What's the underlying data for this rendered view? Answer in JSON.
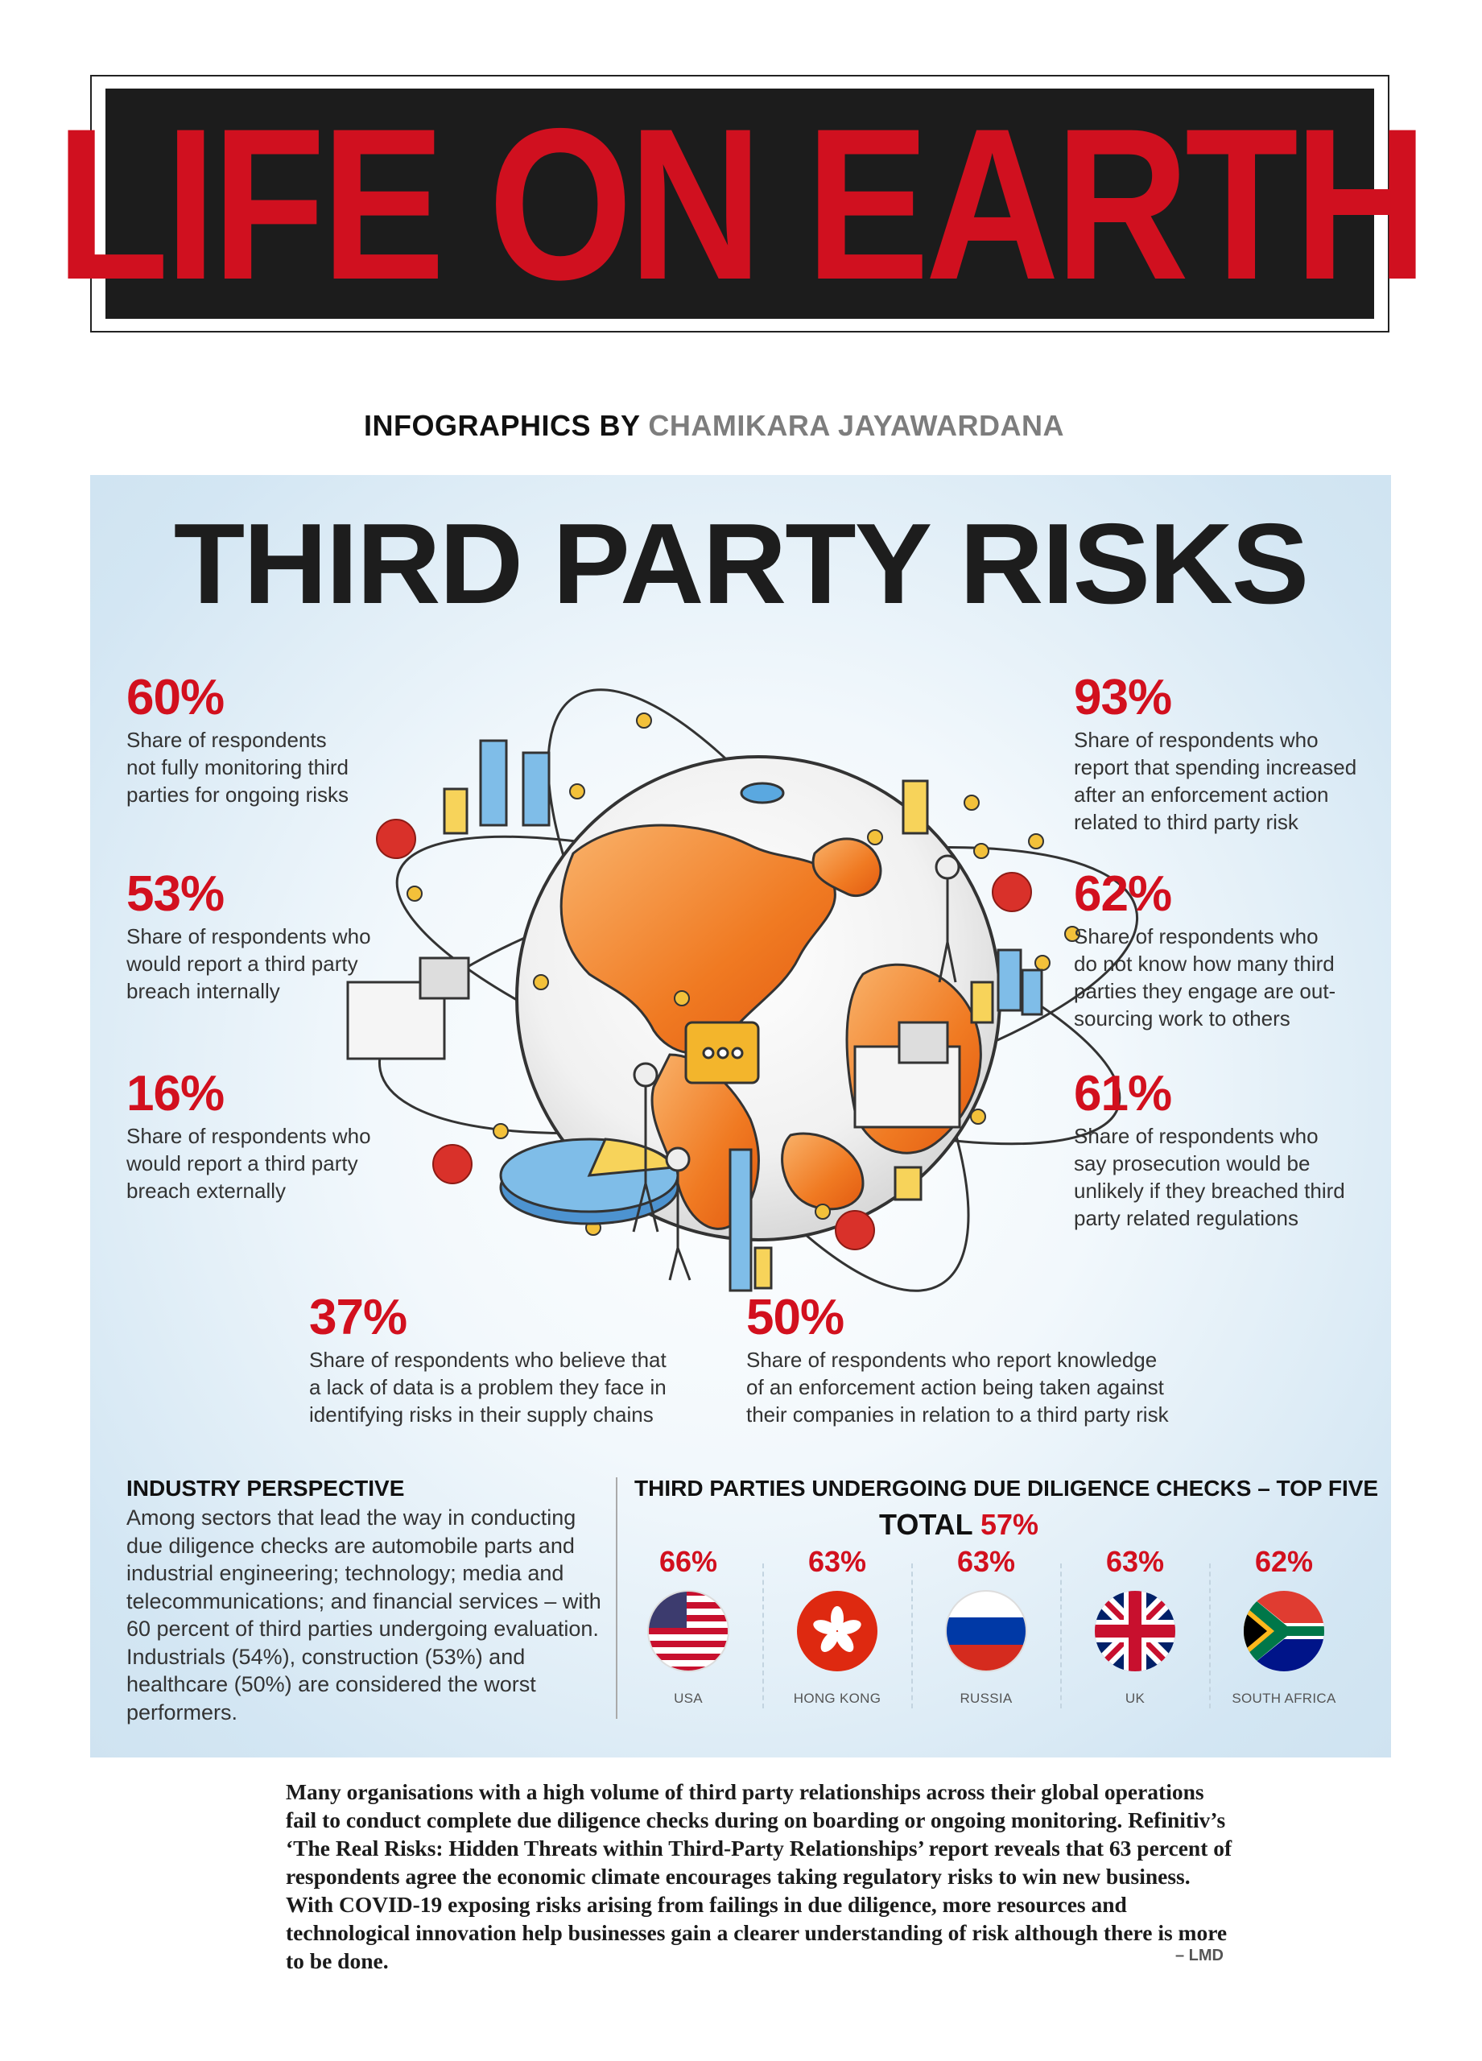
{
  "masthead": {
    "title": "LIFE ON EARTH"
  },
  "byline": {
    "prefix": "INFOGRAPHICS BY",
    "author": "CHAMIKARA JAYAWARDANA"
  },
  "main_title": "THIRD PARTY RISKS",
  "stats": [
    {
      "value": "60%",
      "text": [
        "Share of respondents",
        "not fully monitoring third",
        "parties for ongoing risks"
      ]
    },
    {
      "value": "53%",
      "text": [
        "Share of respondents who",
        "would report a third party",
        "breach internally"
      ]
    },
    {
      "value": "16%",
      "text": [
        "Share of respondents who",
        "would report a third party",
        "breach externally"
      ]
    },
    {
      "value": "93%",
      "text": [
        "Share of respondents who",
        "report that spending increased",
        "after an enforcement action",
        "related to third party risk"
      ]
    },
    {
      "value": "62%",
      "text": [
        "Share of respondents who",
        "do not know how many third",
        "parties they engage are out-",
        "sourcing work to others"
      ]
    },
    {
      "value": "61%",
      "text": [
        "Share of respondents who",
        "say prosecution would be",
        "unlikely if they breached third",
        "party related regulations"
      ]
    },
    {
      "value": "37%",
      "text": [
        "Share of respondents who believe that",
        "a lack of data is a problem they face in",
        "identifying risks in their supply chains"
      ]
    },
    {
      "value": "50%",
      "text": [
        "Share of respondents who report knowledge",
        "of an enforcement action being taken against",
        "their companies in relation to a third party risk"
      ]
    }
  ],
  "industry": {
    "title": "INDUSTRY PERSPECTIVE",
    "body": "Among sectors that lead the way in conducting due diligence checks are automobile parts and industrial engineering; technology; media and telecommunications; and financial services – with 60 percent of third parties undergoing evaluation. Industrials (54%), construction (53%) and healthcare (50%) are considered the worst performers."
  },
  "due_diligence": {
    "title": "THIRD PARTIES UNDERGOING DUE DILIGENCE CHECKS – TOP FIVE",
    "total_label": "TOTAL",
    "total_value": "57%",
    "countries": [
      {
        "pct": "66%",
        "name": "USA",
        "flag": "usa-flag-icon"
      },
      {
        "pct": "63%",
        "name": "HONG KONG",
        "flag": "hong-kong-flag-icon"
      },
      {
        "pct": "63%",
        "name": "RUSSIA",
        "flag": "russia-flag-icon"
      },
      {
        "pct": "63%",
        "name": "UK",
        "flag": "uk-flag-icon"
      },
      {
        "pct": "62%",
        "name": "SOUTH AFRICA",
        "flag": "south-africa-flag-icon"
      }
    ]
  },
  "footer": {
    "paragraph": "Many organisations with a high volume of third party relationships across their global operations fail to conduct complete due diligence checks during on boarding or ongoing monitoring. Refinitiv’s ‘The Real Risks: Hidden Threats within Third-Party Relationships’ report reveals that 63 percent of respondents agree the economic climate encourages taking regulatory risks to win new business. With COVID-19 exposing risks arising from failings in due diligence, more resources and technological innovation help businesses gain a clearer understanding of risk although there is more to be done.",
    "source": "– LMD"
  },
  "colors": {
    "accent_red": "#d2101e",
    "masthead_bg": "#1c1c1c",
    "globe_orange": "#f07a22"
  }
}
